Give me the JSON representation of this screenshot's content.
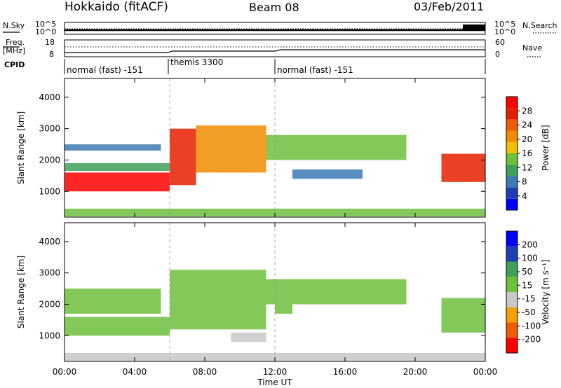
{
  "header": {
    "title": "Hokkaido (fitACF)",
    "beam": "Beam 08",
    "date": "03/Feb/2011"
  },
  "noise_panel": {
    "left_label": "N.Sky",
    "left_tick_top": "10^5",
    "left_tick_bottom": "10^0",
    "right_label": "N.Search",
    "right_tick_top": "10^5",
    "right_tick_bottom": "10^0"
  },
  "freq_panel": {
    "left_label_1": "Freq.",
    "left_label_2": "[MHz]",
    "left_tick_top": "18",
    "left_tick_bottom": "8",
    "right_label": "Nave",
    "right_tick_top": "60",
    "right_tick_bottom": "0"
  },
  "cpid_panel": {
    "label": "CPID",
    "segments": [
      {
        "name": "normal (fast) -151",
        "start_hour": 0,
        "end_hour": 6
      },
      {
        "name": "themis 3300",
        "start_hour": 6,
        "end_hour": 12
      },
      {
        "name": "normal (fast) -151",
        "start_hour": 12,
        "end_hour": 24
      }
    ]
  },
  "x_axis": {
    "label": "Time UT",
    "ticks": [
      "00:00",
      "04:00",
      "08:00",
      "12:00",
      "16:00",
      "20:00",
      "00:00"
    ]
  },
  "power_colorbar": {
    "label": "Power [dB]",
    "ticks": [
      "28",
      "24",
      "20",
      "16",
      "12",
      "8",
      "4"
    ],
    "colors": [
      "#0000ff",
      "#1e3fb4",
      "#3c7ab4",
      "#3fa05a",
      "#6cc03c",
      "#f0c000",
      "#f08c00",
      "#f05a00",
      "#e61e00",
      "#ff0000"
    ]
  },
  "velocity_colorbar": {
    "label": "Velocity [m s⁻¹]",
    "ticks": [
      "200",
      "100",
      "50",
      "15",
      "-15",
      "-50",
      "-100",
      "-200"
    ],
    "colors": [
      "#ff0000",
      "#f05a00",
      "#f0a000",
      "#c8c8c8",
      "#6cc03c",
      "#3fa05a",
      "#1e3fb4",
      "#0000ff"
    ]
  },
  "chart_data": [
    {
      "type": "heatmap",
      "panel": "power",
      "ylabel": "Slant Range [km]",
      "xlabel": "Time UT",
      "xlim": [
        0,
        24
      ],
      "ylim": [
        180,
        4600
      ],
      "y_ticks": [
        1000,
        2000,
        3000,
        4000
      ],
      "colorbar": "Power [dB]",
      "colorbar_range": [
        0,
        30
      ],
      "regions": [
        {
          "t0": 0.0,
          "t1": 6.0,
          "r0": 1000,
          "r1": 1600,
          "power": 28
        },
        {
          "t0": 0.0,
          "t1": 6.0,
          "r0": 1650,
          "r1": 1900,
          "power": 10
        },
        {
          "t0": 0.0,
          "t1": 5.5,
          "r0": 2300,
          "r1": 2500,
          "power": 8
        },
        {
          "t0": 6.0,
          "t1": 7.5,
          "r0": 1200,
          "r1": 3000,
          "power": 24
        },
        {
          "t0": 7.5,
          "t1": 11.5,
          "r0": 1600,
          "r1": 3100,
          "power": 20
        },
        {
          "t0": 11.5,
          "t1": 19.5,
          "r0": 2000,
          "r1": 2800,
          "power": 14
        },
        {
          "t0": 13.0,
          "t1": 17.0,
          "r0": 1400,
          "r1": 1700,
          "power": 6
        },
        {
          "t0": 21.5,
          "t1": 24.0,
          "r0": 1300,
          "r1": 2200,
          "power": 26
        },
        {
          "t0": 0.0,
          "t1": 24.0,
          "r0": 200,
          "r1": 450,
          "power": 12
        }
      ]
    },
    {
      "type": "heatmap",
      "panel": "velocity",
      "ylabel": "Slant Range [km]",
      "xlabel": "Time UT",
      "xlim": [
        0,
        24
      ],
      "ylim": [
        180,
        4600
      ],
      "y_ticks": [
        1000,
        2000,
        3000,
        4000
      ],
      "colorbar": "Velocity [m s⁻¹]",
      "colorbar_range": [
        -250,
        250
      ],
      "regions": [
        {
          "t0": 0.0,
          "t1": 6.0,
          "r0": 1000,
          "r1": 1600,
          "velocity": 0
        },
        {
          "t0": 0.0,
          "t1": 5.5,
          "r0": 1700,
          "r1": 2500,
          "velocity": 0
        },
        {
          "t0": 6.0,
          "t1": 11.5,
          "r0": 1200,
          "r1": 3100,
          "velocity": 0
        },
        {
          "t0": 11.5,
          "t1": 19.5,
          "r0": 2000,
          "r1": 2800,
          "velocity": 0
        },
        {
          "t0": 9.5,
          "t1": 11.5,
          "r0": 800,
          "r1": 1100,
          "velocity": -40
        },
        {
          "t0": 12.0,
          "t1": 13.0,
          "r0": 1700,
          "r1": 2000,
          "velocity": 30
        },
        {
          "t0": 21.5,
          "t1": 24.0,
          "r0": 1100,
          "r1": 2200,
          "velocity": 0
        },
        {
          "t0": 0.0,
          "t1": 24.0,
          "r0": 200,
          "r1": 450,
          "velocity": -30
        }
      ]
    }
  ]
}
